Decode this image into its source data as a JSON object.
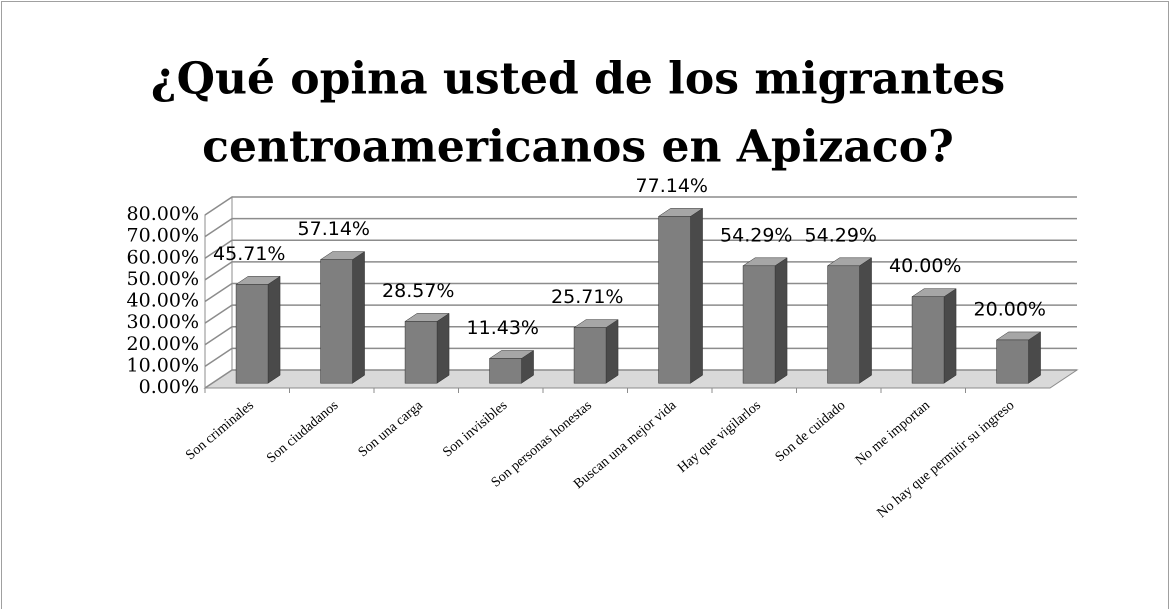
{
  "chart_data": {
    "type": "bar3d",
    "title": [
      "¿Qué opina usted de los migrantes",
      "centroamericanos en Apizaco?"
    ],
    "categories": [
      "Son criminales",
      "Son ciudadanos",
      "Son una carga",
      "Son invisibles",
      "Son personas honestas",
      "Buscan una mejor vida",
      "Hay que vigilarlos",
      "Son de cuidado",
      "No me importan",
      "No hay que permitir su ingreso"
    ],
    "values": [
      45.71,
      57.14,
      28.57,
      11.43,
      25.71,
      77.14,
      54.29,
      54.29,
      40.0,
      20.0
    ],
    "value_labels": [
      "45.71%",
      "57.14%",
      "28.57%",
      "11.43%",
      "25.71%",
      "77.14%",
      "54.29%",
      "54.29%",
      "40.00%",
      "20.00%"
    ],
    "color": "#7f7f7f",
    "ylim": [
      0,
      80
    ],
    "yticks": [
      {
        "value": 0,
        "label": "0.00%"
      },
      {
        "value": 10,
        "label": "10.00%"
      },
      {
        "value": 20,
        "label": "20.00%"
      },
      {
        "value": 30,
        "label": "30.00%"
      },
      {
        "value": 40,
        "label": "40.00%"
      },
      {
        "value": 50,
        "label": "50.00%"
      },
      {
        "value": 60,
        "label": "60.00%"
      },
      {
        "value": 70,
        "label": "70.00%"
      },
      {
        "value": 80,
        "label": "80.00%"
      }
    ],
    "grid": true
  }
}
